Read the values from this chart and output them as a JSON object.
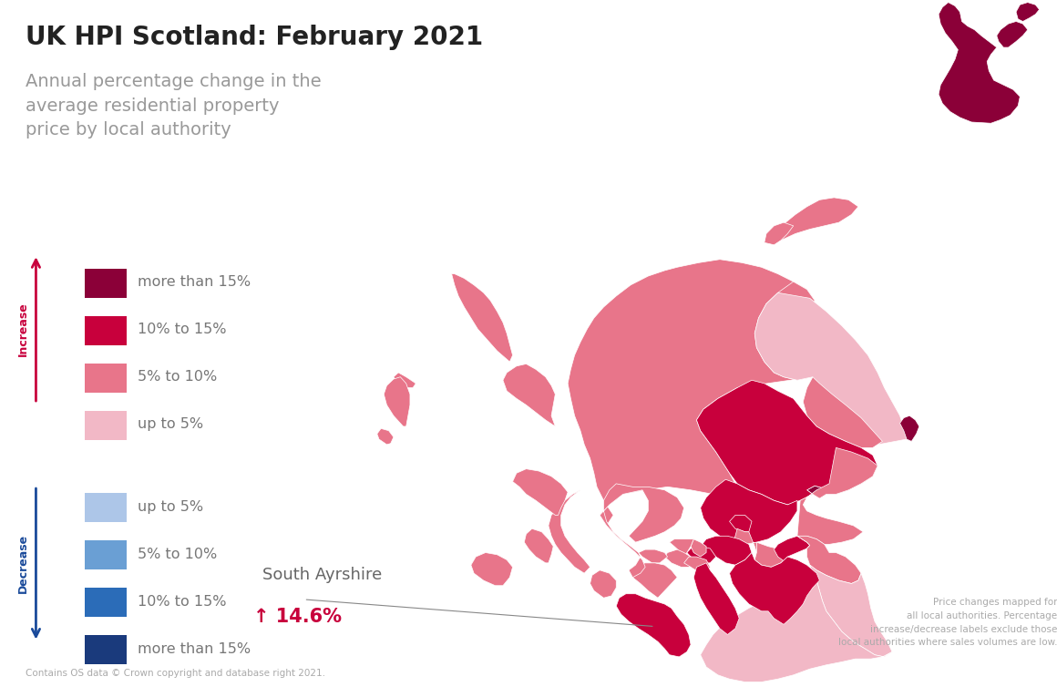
{
  "title": "UK HPI Scotland: February 2021",
  "subtitle_line1": "Annual percentage change in the",
  "subtitle_line2": "average residential property",
  "subtitle_line3": "price by local authority",
  "increase_colors": [
    "#8B0038",
    "#C8003C",
    "#E8758A",
    "#F2B8C6"
  ],
  "decrease_colors": [
    "#ADC6E8",
    "#6A9FD4",
    "#2B6CB8",
    "#1A3A7C"
  ],
  "increase_labels": [
    "more than 15%",
    "10% to 15%",
    "5% to 10%",
    "up to 5%"
  ],
  "decrease_labels": [
    "up to 5%",
    "5% to 10%",
    "10% to 15%",
    "more than 15%"
  ],
  "annotation_label": "South Ayrshire",
  "annotation_value": "↑ 14.6%",
  "annotation_arrow_color": "#C8003C",
  "footnote": "Price changes mapped for\nall local authorities. Percentage\nincrease/decrease labels exclude those\nlocal authorities where sales volumes are low.",
  "copyright": "Contains OS data © Crown copyright and database right 2021.",
  "background_color": "#FFFFFF",
  "text_color": "#555555",
  "title_color": "#222222",
  "increase_label_color": "#C8003C",
  "decrease_label_color": "#1A4A9A",
  "la_colors": {
    "Aberdeen City": "#8B0038",
    "Aberdeenshire": "#F2B8C6",
    "Angus": "#E8758A",
    "Argyll and Bute": "#E8758A",
    "City of Edinburgh": "#C8003C",
    "Clackmannanshire": "#C8003C",
    "Dumfries and Galloway": "#F2B8C6",
    "Dundee City": "#8B0038",
    "East Ayrshire": "#C8003C",
    "East Dunbartonshire": "#E8758A",
    "East Lothian": "#E8758A",
    "East Renfrewshire": "#E8758A",
    "Falkirk": "#E8758A",
    "Fife": "#E8758A",
    "Glasgow City": "#C8003C",
    "Highland": "#E8758A",
    "Inverclyde": "#E8758A",
    "Midlothian": "#C8003C",
    "Moray": "#E8758A",
    "Na h-Eileanan Siar": "#E8758A",
    "North Ayrshire": "#E8758A",
    "North Lanarkshire": "#C8003C",
    "Orkney Islands": "#E8758A",
    "Perth and Kinross": "#C8003C",
    "Renfrewshire": "#E8758A",
    "Scottish Borders": "#F2B8C6",
    "Shetland Islands": "#8B0038",
    "South Ayrshire": "#C8003C",
    "South Lanarkshire": "#C8003C",
    "Stirling": "#C8003C",
    "West Dunbartonshire": "#E8758A",
    "West Lothian": "#E8758A"
  }
}
